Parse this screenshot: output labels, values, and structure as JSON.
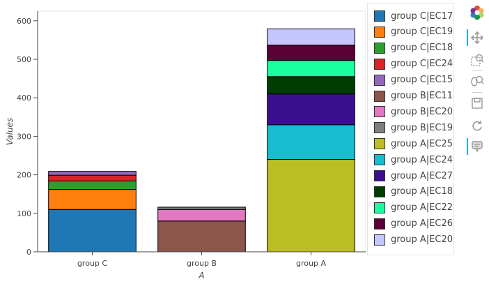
{
  "chart_data": {
    "type": "bar",
    "stacked": true,
    "categories": [
      "group C",
      "group B",
      "group A"
    ],
    "xlabel": "A",
    "ylabel": "Values",
    "ylim": [
      0,
      625
    ],
    "yticks": [
      0,
      100,
      200,
      300,
      400,
      500,
      600
    ],
    "grid": false,
    "legend_position": "right",
    "series": [
      {
        "name": "group C|EC17",
        "color": "#1f77b4",
        "values": [
          110,
          0,
          0
        ]
      },
      {
        "name": "group C|EC19",
        "color": "#ff7f0e",
        "values": [
          52,
          0,
          0
        ]
      },
      {
        "name": "group C|EC18",
        "color": "#2ca02c",
        "values": [
          22,
          0,
          0
        ]
      },
      {
        "name": "group C|EC24",
        "color": "#d62728",
        "values": [
          15,
          0,
          0
        ]
      },
      {
        "name": "group C|EC15",
        "color": "#9467bd",
        "values": [
          10,
          0,
          0
        ]
      },
      {
        "name": "group B|EC11",
        "color": "#8c564b",
        "values": [
          0,
          80,
          0
        ]
      },
      {
        "name": "group B|EC20",
        "color": "#e377c2",
        "values": [
          0,
          30,
          0
        ]
      },
      {
        "name": "group B|EC19",
        "color": "#7f7f7f",
        "values": [
          0,
          6,
          0
        ]
      },
      {
        "name": "group A|EC25",
        "color": "#bcbd22",
        "values": [
          0,
          0,
          240
        ]
      },
      {
        "name": "group A|EC24",
        "color": "#17becf",
        "values": [
          0,
          0,
          90
        ]
      },
      {
        "name": "group A|EC27",
        "color": "#3b0f8f",
        "values": [
          0,
          0,
          80
        ]
      },
      {
        "name": "group A|EC18",
        "color": "#003d00",
        "values": [
          0,
          0,
          45
        ]
      },
      {
        "name": "group A|EC22",
        "color": "#1affa0",
        "values": [
          0,
          0,
          42
        ]
      },
      {
        "name": "group A|EC26",
        "color": "#5a0036",
        "values": [
          0,
          0,
          40
        ]
      },
      {
        "name": "group A|EC20",
        "color": "#c5c5ff",
        "values": [
          0,
          0,
          42
        ]
      }
    ]
  },
  "toolbar": {
    "tools": [
      {
        "icon": "bokeh-logo-icon"
      },
      {
        "icon": "pan-icon"
      },
      {
        "icon": "box-zoom-icon"
      },
      {
        "icon": "wheel-zoom-icon"
      },
      {
        "icon": "save-icon"
      },
      {
        "icon": "reset-icon"
      },
      {
        "icon": "hover-icon"
      }
    ]
  }
}
